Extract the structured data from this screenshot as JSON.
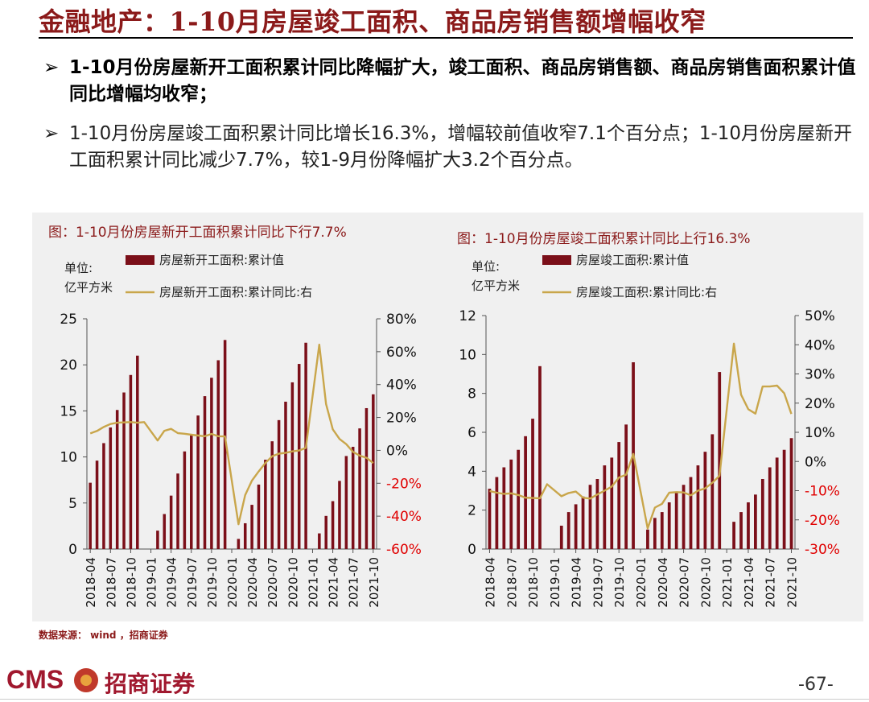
{
  "header": {
    "title": "金融地产：1-10月房屋竣工面积、商品房销售额增幅收窄"
  },
  "bullets": [
    {
      "mark": "➢",
      "text": "1-10月份房屋新开工面积累计同比降幅扩大，竣工面积、商品房销售额、商品房销售面积累计值同比增幅均收窄；"
    },
    {
      "mark": "➢",
      "text": "1-10月份房屋竣工面积累计同比增长16.3%，增幅较前值收窄7.1个百分点；1-10月份房屋新开工面积累计同比减少7.7%，较1-9月份降幅扩大3.2个百分点。"
    }
  ],
  "chart_data": [
    {
      "type": "bar",
      "title": "图：1-10月份房屋新开工面积累计同比下行7.7%",
      "unit_label": [
        "单位:",
        "亿平方米"
      ],
      "categories": [
        "2018-04",
        "2018-05",
        "2018-06",
        "2018-07",
        "2018-08",
        "2018-09",
        "2018-10",
        "2018-11",
        "2018-12",
        "2019-01",
        "2019-02",
        "2019-03",
        "2019-04",
        "2019-05",
        "2019-06",
        "2019-07",
        "2019-08",
        "2019-09",
        "2019-10",
        "2019-11",
        "2019-12",
        "2020-01",
        "2020-02",
        "2020-03",
        "2020-04",
        "2020-05",
        "2020-06",
        "2020-07",
        "2020-08",
        "2020-09",
        "2020-10",
        "2020-11",
        "2020-12",
        "2021-01",
        "2021-02",
        "2021-03",
        "2021-04",
        "2021-05",
        "2021-06",
        "2021-07",
        "2021-08",
        "2021-09",
        "2021-10"
      ],
      "tick_labels": [
        "2018-04",
        "2018-07",
        "2018-10",
        "2019-01",
        "2019-04",
        "2019-07",
        "2019-10",
        "2020-01",
        "2020-04",
        "2020-07",
        "2020-10",
        "2021-01",
        "2021-04",
        "2021-07",
        "2021-10"
      ],
      "series": [
        {
          "name": "房屋新开工面积:累计值",
          "kind": "bar",
          "axis": "left",
          "color": "#7B0F19",
          "values": [
            7.2,
            9.6,
            11.5,
            13.2,
            15.1,
            17.0,
            18.9,
            21.0,
            null,
            null,
            2.0,
            3.8,
            5.8,
            8.2,
            10.6,
            12.5,
            14.5,
            16.6,
            18.6,
            20.5,
            22.7,
            null,
            1.1,
            2.8,
            4.8,
            7.0,
            9.7,
            11.7,
            14.0,
            16.0,
            18.1,
            20.1,
            22.4,
            null,
            1.7,
            3.6,
            5.2,
            7.4,
            10.1,
            11.1,
            13.1,
            15.3,
            16.8
          ]
        },
        {
          "name": "房屋新开工面积:累计同比:右",
          "kind": "line",
          "axis": "right",
          "color": "#C9A64B",
          "values": [
            10.3,
            11.8,
            14.2,
            16.0,
            16.8,
            17.0,
            17.2,
            16.8,
            17.2,
            null,
            6.0,
            11.9,
            13.1,
            10.5,
            10.1,
            9.5,
            9.0,
            8.6,
            10.0,
            8.6,
            8.5,
            null,
            -44.9,
            -27.2,
            -18.4,
            -12.8,
            -7.6,
            -3.6,
            -2.0,
            -1.5,
            -0.6,
            -0.1,
            1.5,
            null,
            64.3,
            28.2,
            12.8,
            6.9,
            3.8,
            -0.9,
            -3.2,
            -4.5,
            -7.7
          ]
        }
      ],
      "left_axis": {
        "min": 0,
        "max": 25,
        "ticks": [
          "0",
          "5",
          "10",
          "15",
          "20",
          "25"
        ]
      },
      "right_axis": {
        "min": -60,
        "max": 80,
        "ticks": [
          "-60%",
          "-40%",
          "-20%",
          "0%",
          "20%",
          "40%",
          "60%",
          "80%"
        ]
      }
    },
    {
      "type": "bar",
      "title": "图：1-10月份房屋竣工面积累计同比上行16.3%",
      "unit_label": [
        "单位:",
        "亿平方米"
      ],
      "categories": [
        "2018-04",
        "2018-05",
        "2018-06",
        "2018-07",
        "2018-08",
        "2018-09",
        "2018-10",
        "2018-11",
        "2018-12",
        "2019-01",
        "2019-02",
        "2019-03",
        "2019-04",
        "2019-05",
        "2019-06",
        "2019-07",
        "2019-08",
        "2019-09",
        "2019-10",
        "2019-11",
        "2019-12",
        "2020-01",
        "2020-02",
        "2020-03",
        "2020-04",
        "2020-05",
        "2020-06",
        "2020-07",
        "2020-08",
        "2020-09",
        "2020-10",
        "2020-11",
        "2020-12",
        "2021-01",
        "2021-02",
        "2021-03",
        "2021-04",
        "2021-05",
        "2021-06",
        "2021-07",
        "2021-08",
        "2021-09",
        "2021-10"
      ],
      "tick_labels": [
        "2018-04",
        "2018-07",
        "2018-10",
        "2019-01",
        "2019-04",
        "2019-07",
        "2019-10",
        "2020-01",
        "2020-04",
        "2020-07",
        "2020-10",
        "2021-01",
        "2021-04",
        "2021-07",
        "2021-10"
      ],
      "series": [
        {
          "name": "房屋竣工面积:累计值",
          "kind": "bar",
          "axis": "left",
          "color": "#7B0F19",
          "values": [
            3.1,
            3.7,
            4.2,
            4.6,
            5.1,
            5.8,
            6.7,
            9.4,
            null,
            null,
            1.2,
            1.9,
            2.3,
            2.7,
            3.3,
            3.6,
            4.3,
            4.7,
            5.5,
            6.4,
            9.6,
            null,
            1.0,
            1.6,
            1.9,
            2.4,
            2.9,
            3.3,
            3.7,
            4.3,
            5.0,
            5.9,
            9.1,
            null,
            1.4,
            1.9,
            2.4,
            2.8,
            3.6,
            4.2,
            4.7,
            5.1,
            5.7
          ]
        },
        {
          "name": "房屋竣工面积:累计同比:右",
          "kind": "line",
          "axis": "right",
          "color": "#C9A64B",
          "values": [
            -10.1,
            -10.7,
            -11.1,
            -10.9,
            -11.5,
            -12.4,
            -12.5,
            -12.6,
            -7.8,
            null,
            -11.9,
            -10.8,
            -10.3,
            -12.4,
            -12.7,
            -11.3,
            -10.0,
            -8.6,
            -5.5,
            -4.5,
            2.6,
            null,
            -22.9,
            -15.8,
            -14.5,
            -10.7,
            -10.5,
            -10.6,
            -11.6,
            -10.0,
            -9.2,
            -7.3,
            -4.9,
            null,
            40.4,
            22.9,
            17.9,
            16.4,
            25.7,
            25.7,
            26.0,
            23.4,
            16.3
          ]
        }
      ],
      "left_axis": {
        "min": 0,
        "max": 12,
        "ticks": [
          "0",
          "2",
          "4",
          "6",
          "8",
          "10",
          "12"
        ]
      },
      "right_axis": {
        "min": -30,
        "max": 50,
        "ticks": [
          "-30%",
          "-20%",
          "-10%",
          "0%",
          "10%",
          "20%",
          "30%",
          "40%",
          "50%"
        ]
      }
    }
  ],
  "source": "数据来源： wind ，招商证券",
  "footer": {
    "logo_text": "CMS",
    "logo_cn": "招商证券",
    "page": "-67-"
  },
  "colors": {
    "title": "#8B1A1A",
    "bar": "#7B0F19",
    "line": "#C9A64B",
    "negative": "#E00000"
  }
}
